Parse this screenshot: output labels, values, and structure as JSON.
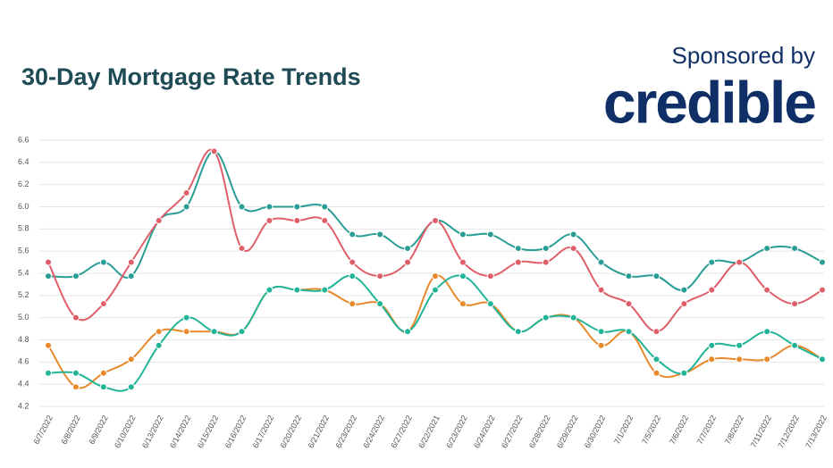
{
  "chart_data": {
    "type": "line",
    "title": "30-Day Mortgage Rate Trends",
    "sponsor_label": "Sponsored by",
    "sponsor": "credible",
    "categories": [
      "6/7/2022",
      "6/8/2022",
      "6/9/2022",
      "6/10/2022",
      "6/13/2022",
      "6/14/2022",
      "6/15/2022",
      "6/16/2022",
      "6/17/2022",
      "6/20/2022",
      "6/21/2022",
      "6/23/2022",
      "6/24/2022",
      "6/27/2022",
      "6/22/2021",
      "6/23/2022",
      "6/24/2022",
      "6/27/2022",
      "6/28/2022",
      "6/29/2022",
      "6/30/2022",
      "7/1/2022",
      "7/5/2022",
      "7/6/2022",
      "7/7/2022",
      "7/8/2022",
      "7/11/2022",
      "7/12/2022",
      "7/13/2022"
    ],
    "series": [
      {
        "color": "#2a9d95",
        "values": [
          5.375,
          5.375,
          5.5,
          5.375,
          5.875,
          6.0,
          6.5,
          6.0,
          6.0,
          6.0,
          6.0,
          5.75,
          5.75,
          5.625,
          5.875,
          5.75,
          5.75,
          5.625,
          5.625,
          5.75,
          5.5,
          5.375,
          5.375,
          5.25,
          5.5,
          5.5,
          5.625,
          5.625,
          5.5
        ]
      },
      {
        "color": "#de5f6a",
        "values": [
          5.5,
          5.0,
          5.125,
          5.5,
          5.875,
          6.125,
          6.5,
          5.625,
          5.875,
          5.875,
          5.875,
          5.5,
          5.375,
          5.5,
          5.875,
          5.5,
          5.375,
          5.5,
          5.5,
          5.625,
          5.25,
          5.125,
          4.875,
          5.125,
          5.25,
          5.5,
          5.25,
          5.125,
          5.25
        ]
      },
      {
        "color": "#e8892b",
        "values": [
          4.75,
          4.375,
          4.5,
          4.625,
          4.875,
          4.875,
          4.875,
          4.875,
          5.25,
          5.25,
          5.25,
          5.125,
          5.125,
          4.875,
          5.375,
          5.125,
          5.125,
          4.875,
          5.0,
          5.0,
          4.75,
          4.875,
          4.5,
          4.5,
          4.625,
          4.625,
          4.625,
          4.75,
          4.625
        ]
      },
      {
        "color": "#22b497",
        "values": [
          4.5,
          4.5,
          4.375,
          4.375,
          4.75,
          5.0,
          4.875,
          4.875,
          5.25,
          5.25,
          5.25,
          5.375,
          5.125,
          4.875,
          5.25,
          5.375,
          5.125,
          4.875,
          5.0,
          5.0,
          4.875,
          4.875,
          4.625,
          4.5,
          4.75,
          4.75,
          4.875,
          4.75,
          4.625
        ]
      }
    ],
    "ylim": [
      4.2,
      6.6
    ],
    "yticks": [
      4.2,
      4.4,
      4.6,
      4.8,
      {
        "value": 5,
        "label": "5.0"
      },
      5.2,
      5.4,
      5.6,
      5.8,
      {
        "value": 6,
        "label": "6.0"
      },
      6.2,
      6.4,
      6.6
    ],
    "grid": true
  }
}
